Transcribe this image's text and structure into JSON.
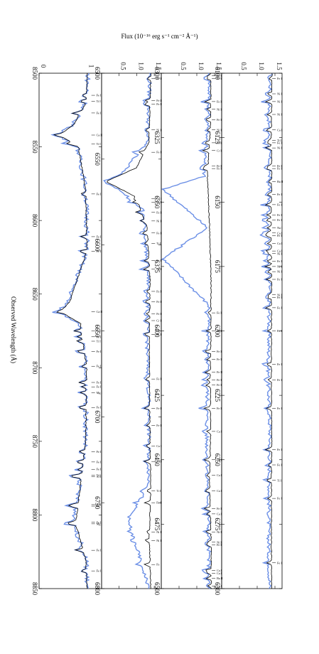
{
  "figure": {
    "flux_label": "Flux (10⁻¹⁶ erg s⁻¹ cm⁻² Å⁻¹)",
    "wavelength_label": "Observed Wavelength (Å)"
  },
  "colors": {
    "observed": "#6b8fe6",
    "model": "#000000",
    "frame": "#000000"
  },
  "chart_data": [
    {
      "type": "line",
      "panel": "6100-6300",
      "x_range": [
        6100,
        6300
      ],
      "ylim": [
        0.0,
        1.7
      ],
      "y_ticks": [
        0.5,
        1.0,
        1.5
      ],
      "y_tick_labels": [
        "0.5",
        "1.0",
        "1.5"
      ],
      "x_ticks": [
        6100,
        6125,
        6150,
        6175,
        6200,
        6225,
        6250,
        6275,
        6300
      ],
      "x_tick_labels": [
        "6100",
        "6125",
        "6150",
        "6175",
        "6200",
        "6225",
        "6250",
        "6275",
        "6300"
      ],
      "series": [
        {
          "role": "observed",
          "x": [
            6100,
            6120,
            6140,
            6160,
            6180,
            6200,
            6220,
            6240,
            6260,
            6280,
            6300
          ],
          "y": [
            1.38,
            1.32,
            1.36,
            1.3,
            1.35,
            1.33,
            1.31,
            1.36,
            1.34,
            1.32,
            1.35
          ]
        },
        {
          "role": "model",
          "x": [
            6100,
            6120,
            6140,
            6160,
            6180,
            6200,
            6220,
            6240,
            6260,
            6280,
            6300
          ],
          "y": [
            1.42,
            1.4,
            1.41,
            1.39,
            1.41,
            1.4,
            1.4,
            1.41,
            1.4,
            1.4,
            1.41
          ]
        }
      ],
      "lines": [
        {
          "w": 6102,
          "label": "Fe I"
        },
        {
          "w": 6108,
          "label": "Ni I"
        },
        {
          "w": 6111,
          "label": "Ni I"
        },
        {
          "w": 6116,
          "label": "Ni I"
        },
        {
          "w": 6122,
          "label": "Ca I"
        },
        {
          "w": 6126,
          "label": "Ti I"
        },
        {
          "w": 6127,
          "label": "Fe I"
        },
        {
          "w": 6129,
          "label": "Ni I"
        },
        {
          "w": 6136,
          "label": "Fe I"
        },
        {
          "w": 6137,
          "label": "Fe I"
        },
        {
          "w": 6142,
          "label": "Ba II"
        },
        {
          "w": 6147,
          "label": "Fe I"
        },
        {
          "w": 6151,
          "label": "Fe I"
        },
        {
          "w": 6155,
          "label": "Fe I"
        },
        {
          "w": 6157,
          "label": "Fe I"
        },
        {
          "w": 6160,
          "label": "Na I"
        },
        {
          "w": 6162,
          "label": "Ca I"
        },
        {
          "w": 6163,
          "label": "Fe I"
        },
        {
          "w": 6166,
          "label": "Ca I"
        },
        {
          "w": 6169,
          "label": "Ca I"
        },
        {
          "w": 6170,
          "label": "Ni I"
        },
        {
          "w": 6173,
          "label": "Fe I"
        },
        {
          "w": 6175,
          "label": "Ni I"
        },
        {
          "w": 6177,
          "label": "Ni I"
        },
        {
          "w": 6180,
          "label": "Fe I"
        },
        {
          "w": 6186,
          "label": "Ni I"
        },
        {
          "w": 6187,
          "label": "Fe I"
        },
        {
          "w": 6191,
          "label": "Fe I"
        },
        {
          "w": 6200,
          "label": "Fe I"
        },
        {
          "w": 6213,
          "label": "Fe I"
        },
        {
          "w": 6219,
          "label": "Fe I"
        },
        {
          "w": 6230,
          "label": "Fe I"
        },
        {
          "w": 6246,
          "label": "Fe I"
        },
        {
          "w": 6252,
          "label": "Fe I"
        },
        {
          "w": 6258,
          "label": "Ti I"
        },
        {
          "w": 6265,
          "label": "Fe I"
        },
        {
          "w": 6290,
          "label": "Fe I"
        }
      ]
    },
    {
      "type": "line",
      "panel": "6300-6500",
      "x_range": [
        6300,
        6500
      ],
      "ylim": [
        0.0,
        1.7
      ],
      "y_ticks": [
        0.5,
        1.0,
        1.5
      ],
      "y_tick_labels": [
        "0.5",
        "1.0",
        "1.5"
      ],
      "x_ticks": [
        6300,
        6325,
        6350,
        6375,
        6400,
        6425,
        6450,
        6475,
        6500
      ],
      "x_tick_labels": [
        "6300",
        "6325",
        "6350",
        "6375",
        "6400",
        "6425",
        "6450",
        "6475",
        "6500"
      ],
      "series": [
        {
          "role": "observed",
          "x": [
            6300,
            6320,
            6340,
            6345,
            6360,
            6372,
            6390,
            6410,
            6440,
            6470,
            6500
          ],
          "y": [
            1.36,
            1.33,
            1.2,
            0.05,
            1.3,
            0.05,
            1.34,
            1.31,
            1.28,
            1.33,
            1.35
          ]
        },
        {
          "role": "model",
          "x": [
            6300,
            6320,
            6340,
            6360,
            6380,
            6400,
            6420,
            6440,
            6460,
            6480,
            6500
          ],
          "y": [
            1.4,
            1.39,
            1.3,
            1.36,
            1.4,
            1.4,
            1.38,
            1.39,
            1.36,
            1.4,
            1.41
          ]
        }
      ],
      "lines": [
        {
          "w": 6301,
          "label": "Fe I"
        },
        {
          "w": 6302,
          "label": "Fe I"
        },
        {
          "w": 6311,
          "label": "Fe I"
        },
        {
          "w": 6314,
          "label": "Ni I"
        },
        {
          "w": 6318,
          "label": "Fe I"
        },
        {
          "w": 6322,
          "label": "Ni I"
        },
        {
          "w": 6327,
          "label": "Ni I"
        },
        {
          "w": 6330,
          "label": "Cr I"
        },
        {
          "w": 6336,
          "label": "Fe I"
        },
        {
          "w": 6337,
          "label": "Fe I"
        },
        {
          "w": 6393,
          "label": "Fe I"
        },
        {
          "w": 6400,
          "label": "Fe I"
        },
        {
          "w": 6408,
          "label": "Fe I"
        },
        {
          "w": 6411,
          "label": "Fe I"
        },
        {
          "w": 6416,
          "label": "Fe II"
        },
        {
          "w": 6419,
          "label": "Fe I"
        },
        {
          "w": 6421,
          "label": "Fe I"
        },
        {
          "w": 6430,
          "label": "Fe I"
        },
        {
          "w": 6439,
          "label": "Ca I"
        },
        {
          "w": 6450,
          "label": "Ca I"
        },
        {
          "w": 6456,
          "label": "Ca I"
        },
        {
          "w": 6462,
          "label": "Ca I"
        },
        {
          "w": 6469,
          "label": "Fe I"
        },
        {
          "w": 6471,
          "label": "Ca I"
        },
        {
          "w": 6478,
          "label": "Ni I"
        },
        {
          "w": 6482,
          "label": "Ni I"
        },
        {
          "w": 6483,
          "label": "Fe I"
        },
        {
          "w": 6493,
          "label": "Ca I"
        },
        {
          "w": 6494,
          "label": "Ca I"
        },
        {
          "w": 6496,
          "label": "Ba II"
        },
        {
          "w": 6499,
          "label": "Ca I"
        }
      ]
    },
    {
      "type": "line",
      "panel": "6500-6800",
      "x_range": [
        6500,
        6800
      ],
      "ylim": [
        0.0,
        1.7
      ],
      "y_ticks": [
        0.5,
        1.0,
        1.5
      ],
      "y_tick_labels": [
        "0.5",
        "1.0",
        "1.5"
      ],
      "x_ticks": [
        6500,
        6550,
        6600,
        6650,
        6700,
        6750,
        6800
      ],
      "x_tick_labels": [
        "6500",
        "6550",
        "6600",
        "6650",
        "6700",
        "6750",
        "6800"
      ],
      "series": [
        {
          "role": "observed",
          "x": [
            6500,
            6540,
            6558,
            6563,
            6568,
            6580,
            6620,
            6660,
            6700,
            6740,
            6760,
            6800
          ],
          "y": [
            1.38,
            1.3,
            0.6,
            0.05,
            0.55,
            1.2,
            1.33,
            1.3,
            1.35,
            1.34,
            0.75,
            1.35
          ]
        },
        {
          "role": "model",
          "x": [
            6500,
            6540,
            6555,
            6563,
            6572,
            6590,
            6620,
            6660,
            6700,
            6740,
            6770,
            6800
          ],
          "y": [
            1.4,
            1.35,
            1.0,
            0.12,
            0.98,
            1.3,
            1.38,
            1.36,
            1.37,
            1.4,
            1.36,
            1.4
          ]
        }
      ],
      "lines": [
        {
          "w": 6503,
          "label": "Fe I"
        },
        {
          "w": 6516,
          "label": "Fe I"
        },
        {
          "w": 6518,
          "label": "Fe I"
        },
        {
          "w": 6533,
          "label": "Ni I"
        },
        {
          "w": 6546,
          "label": "Fe I"
        },
        {
          "w": 6573,
          "label": "Ca I"
        },
        {
          "w": 6575,
          "label": "Fe I"
        },
        {
          "w": 6581,
          "label": "Fe I"
        },
        {
          "w": 6586,
          "label": "Ni I"
        },
        {
          "w": 6593,
          "label": "Fe I"
        },
        {
          "w": 6599,
          "label": "Ti I"
        },
        {
          "w": 6609,
          "label": "Fe I"
        },
        {
          "w": 6614,
          "label": "Ni I"
        },
        {
          "w": 6627,
          "label": "Fe I"
        },
        {
          "w": 6633,
          "label": "Fe I"
        },
        {
          "w": 6640,
          "label": "Fe I"
        },
        {
          "w": 6644,
          "label": "Cr I"
        },
        {
          "w": 6652,
          "label": "Ni I"
        },
        {
          "w": 6678,
          "label": "Fe I"
        },
        {
          "w": 6695,
          "label": "Fe I"
        },
        {
          "w": 6705,
          "label": "Fe I"
        },
        {
          "w": 6717,
          "label": "Ca I"
        },
        {
          "w": 6726,
          "label": "Fe I"
        },
        {
          "w": 6743,
          "label": "Ti I"
        },
        {
          "w": 6750,
          "label": "Fe I"
        },
        {
          "w": 6767,
          "label": "Ni I"
        },
        {
          "w": 6772,
          "label": "Ni I"
        },
        {
          "w": 6786,
          "label": "Fe"
        }
      ]
    },
    {
      "type": "line",
      "panel": "8500-8850",
      "x_range": [
        8500,
        8850
      ],
      "ylim": [
        0.0,
        1.3
      ],
      "y_ticks": [
        0.0,
        1.0
      ],
      "y_tick_labels": [
        "0",
        "1"
      ],
      "x_ticks": [
        8500,
        8550,
        8600,
        8650,
        8700,
        8750,
        8800,
        8850
      ],
      "x_tick_labels": [
        "8500",
        "8550",
        "8600",
        "8650",
        "8700",
        "8750",
        "8800",
        "8850"
      ],
      "series": [
        {
          "role": "observed",
          "x": [
            8500,
            8520,
            8535,
            8542,
            8550,
            8580,
            8620,
            8655,
            8662,
            8670,
            8700,
            8750,
            8806,
            8830,
            8850
          ],
          "y": [
            1.02,
            0.98,
            0.7,
            0.38,
            0.8,
            0.98,
            1.0,
            0.6,
            0.4,
            0.85,
            0.98,
            0.97,
            0.72,
            0.98,
            1.0
          ]
        },
        {
          "role": "model",
          "x": [
            8500,
            8520,
            8535,
            8542,
            8550,
            8580,
            8620,
            8655,
            8662,
            8670,
            8700,
            8750,
            8806,
            8830,
            8850
          ],
          "y": [
            1.0,
            0.98,
            0.72,
            0.42,
            0.82,
            0.97,
            1.0,
            0.64,
            0.45,
            0.86,
            0.99,
            0.97,
            0.76,
            0.97,
            1.0
          ]
        }
      ],
      "lines": [
        {
          "w": 8515,
          "label": "Fe I"
        },
        {
          "w": 8519,
          "label": "Ti I"
        },
        {
          "w": 8527,
          "label": "Fe I"
        },
        {
          "w": 8542,
          "label": "Ca II"
        },
        {
          "w": 8548,
          "label": "Ti I"
        },
        {
          "w": 8582,
          "label": "Fe I"
        },
        {
          "w": 8611,
          "label": "Fe I"
        },
        {
          "w": 8621,
          "label": "Fe I"
        },
        {
          "w": 8662,
          "label": "Ca II"
        },
        {
          "w": 8675,
          "label": "Ti I"
        },
        {
          "w": 8679,
          "label": "Fe I"
        },
        {
          "w": 8682,
          "label": "Ti I"
        },
        {
          "w": 8689,
          "label": "Fe I"
        },
        {
          "w": 8699,
          "label": "Fe I"
        },
        {
          "w": 8710,
          "label": "Fe I"
        },
        {
          "w": 8713,
          "label": "Fe I"
        },
        {
          "w": 8717,
          "label": "Mg I"
        },
        {
          "w": 8727,
          "label": "Fe II"
        },
        {
          "w": 8757,
          "label": "Fe I"
        },
        {
          "w": 8764,
          "label": "Fe I"
        },
        {
          "w": 8769,
          "label": "Fe I"
        },
        {
          "w": 8773,
          "label": "Ti I"
        },
        {
          "w": 8774,
          "label": "Al I"
        },
        {
          "w": 8793,
          "label": "Fe I"
        },
        {
          "w": 8794,
          "label": "Fe"
        },
        {
          "w": 8805,
          "label": "Fe I"
        },
        {
          "w": 8806,
          "label": "Mg I"
        },
        {
          "w": 8824,
          "label": "Fe I"
        },
        {
          "w": 8838,
          "label": "Fe I"
        }
      ]
    }
  ]
}
